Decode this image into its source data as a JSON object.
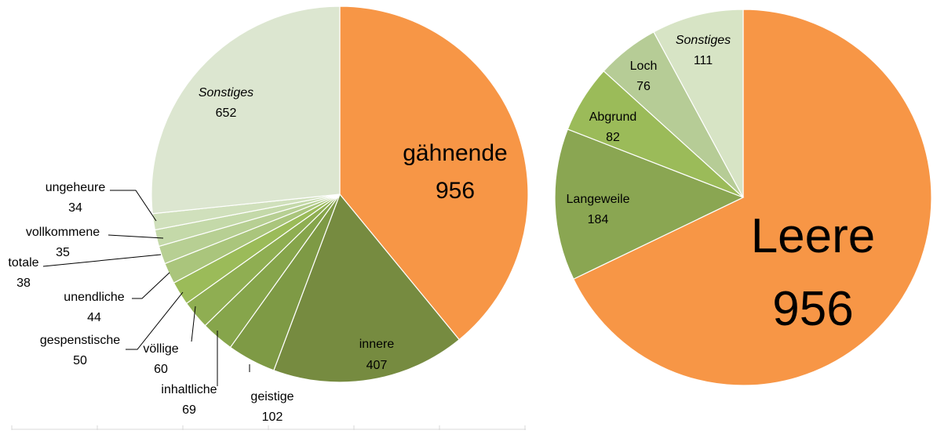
{
  "chart_data": [
    {
      "type": "pie",
      "slices": [
        {
          "label": "gähnende",
          "value": 956,
          "color": "#f79646"
        },
        {
          "label": "innere",
          "value": 407,
          "color": "#768b40"
        },
        {
          "label": "geistige",
          "value": 102,
          "color": "#7e9a45"
        },
        {
          "label": "inhaltliche",
          "value": 69,
          "color": "#86a54b"
        },
        {
          "label": "völlige",
          "value": 60,
          "color": "#8fae52"
        },
        {
          "label": "gespenstische",
          "value": 50,
          "color": "#9bbb59"
        },
        {
          "label": "unendliche",
          "value": 44,
          "color": "#aac57c"
        },
        {
          "label": "totale",
          "value": 38,
          "color": "#b7cf93"
        },
        {
          "label": "vollkommene",
          "value": 35,
          "color": "#c4d9a9"
        },
        {
          "label": "ungeheure",
          "value": 34,
          "color": "#d0e0bc"
        },
        {
          "label": "Sonstiges",
          "value": 652,
          "color": "#dce6d0"
        }
      ]
    },
    {
      "type": "pie",
      "slices": [
        {
          "label": "Leere",
          "value": 956,
          "color": "#f79646"
        },
        {
          "label": "Langeweile",
          "value": 184,
          "color": "#8aa652"
        },
        {
          "label": "Abgrund",
          "value": 82,
          "color": "#9bbb59"
        },
        {
          "label": "Loch",
          "value": 76,
          "color": "#b6cc96"
        },
        {
          "label": "Sonstiges",
          "value": 111,
          "color": "#d7e4c5"
        }
      ]
    }
  ]
}
